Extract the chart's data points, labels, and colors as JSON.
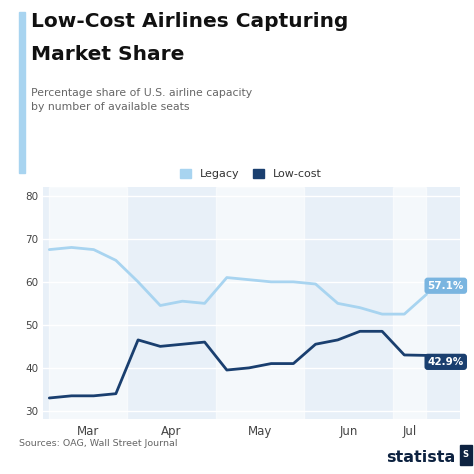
{
  "title_line1": "Low-Cost Airlines Capturing",
  "title_line2": "Market Share",
  "subtitle": "Percentage share of U.S. airline capacity\nby number of available seats",
  "source": "Sources: OAG, Wall Street Journal",
  "bg_color": "#ffffff",
  "title_color": "#111111",
  "subtitle_color": "#666666",
  "accent_color": "#a8d4f0",
  "x_labels": [
    "Mar",
    "Apr",
    "May",
    "Jun",
    "Jul"
  ],
  "legacy_values": [
    67.5,
    68.0,
    67.5,
    65.0,
    60.0,
    54.5,
    55.5,
    55.0,
    61.0,
    60.5,
    60.0,
    60.0,
    59.5,
    55.0,
    54.0,
    52.5,
    52.5,
    57.1
  ],
  "lowcost_values": [
    33.0,
    33.5,
    33.5,
    34.0,
    46.5,
    45.0,
    45.5,
    46.0,
    39.5,
    40.0,
    41.0,
    41.0,
    45.5,
    46.5,
    48.5,
    48.5,
    43.0,
    42.9
  ],
  "legacy_color": "#a8d4f0",
  "lowcost_color": "#1a3f6f",
  "ylim": [
    28,
    82
  ],
  "yticks": [
    30,
    40,
    50,
    60,
    70,
    80
  ],
  "label_legacy_end": "57.1%",
  "label_lowcost_end": "42.9%",
  "label_legacy_bg": "#7ab5e0",
  "label_lowcost_bg": "#1a3f6f",
  "stripe_color": "#dce8f5",
  "grid_color": "#ffffff",
  "chart_bg": "#e8f0f8"
}
